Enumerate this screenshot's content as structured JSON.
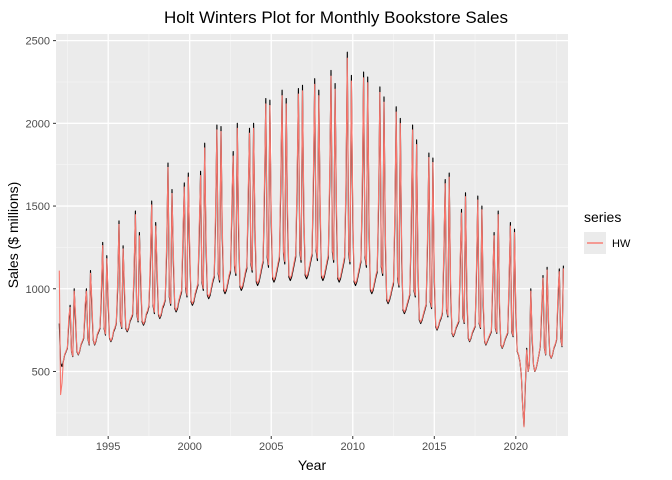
{
  "chart_data": {
    "type": "line",
    "title": "Holt Winters Plot for Monthly Bookstore Sales",
    "xlabel": "Year",
    "ylabel": "Sales ($ millions)",
    "xlim": [
      1991.8,
      2023.2
    ],
    "ylim": [
      110,
      2540
    ],
    "x_ticks": [
      1995,
      2000,
      2005,
      2010,
      2015,
      2020
    ],
    "y_ticks": [
      500,
      1000,
      1500,
      2000,
      2500
    ],
    "grid": true,
    "legend": {
      "title": "series",
      "placement": "right",
      "entries": [
        "HW"
      ]
    },
    "x_start": 1992.0,
    "x_step": 0.0833333,
    "annual_observed": [
      [
        790,
        550,
        530,
        560,
        600,
        620,
        640,
        790,
        900,
        620,
        590,
        1000
      ],
      [
        800,
        620,
        600,
        620,
        660,
        680,
        700,
        860,
        1000,
        700,
        660,
        1110
      ],
      [
        880,
        690,
        660,
        680,
        720,
        740,
        760,
        960,
        1280,
        760,
        720,
        1200
      ],
      [
        900,
        700,
        680,
        700,
        740,
        760,
        790,
        1000,
        1410,
        800,
        760,
        1260
      ],
      [
        960,
        760,
        740,
        760,
        800,
        820,
        840,
        1060,
        1470,
        850,
        800,
        1340
      ],
      [
        1020,
        800,
        780,
        800,
        840,
        860,
        890,
        1120,
        1530,
        900,
        850,
        1400
      ],
      [
        1080,
        840,
        820,
        840,
        880,
        900,
        930,
        1200,
        1760,
        950,
        900,
        1600
      ],
      [
        1150,
        880,
        860,
        880,
        920,
        950,
        980,
        1260,
        1640,
        1000,
        950,
        1700
      ],
      [
        1200,
        920,
        900,
        920,
        960,
        990,
        1020,
        1300,
        1710,
        1040,
        990,
        1880
      ],
      [
        1260,
        960,
        940,
        960,
        1000,
        1040,
        1070,
        1380,
        1990,
        1090,
        1040,
        1980
      ],
      [
        1300,
        990,
        970,
        990,
        1030,
        1070,
        1100,
        1440,
        1830,
        1130,
        1080,
        2000
      ],
      [
        1330,
        1010,
        990,
        1010,
        1050,
        1090,
        1120,
        1480,
        1970,
        1150,
        1100,
        2000
      ],
      [
        1370,
        1040,
        1020,
        1040,
        1080,
        1120,
        1160,
        1540,
        2150,
        1190,
        1130,
        2140
      ],
      [
        1400,
        1060,
        1040,
        1060,
        1100,
        1140,
        1180,
        1580,
        2200,
        1210,
        1150,
        2150
      ],
      [
        1420,
        1070,
        1050,
        1070,
        1110,
        1150,
        1190,
        1600,
        2210,
        1220,
        1160,
        2230
      ],
      [
        1440,
        1080,
        1060,
        1080,
        1120,
        1160,
        1200,
        1620,
        2270,
        1230,
        1170,
        2200
      ],
      [
        1440,
        1070,
        1050,
        1070,
        1110,
        1150,
        1190,
        1620,
        2320,
        1220,
        1160,
        2240
      ],
      [
        1420,
        1060,
        1040,
        1060,
        1100,
        1140,
        1180,
        1600,
        2430,
        1210,
        1150,
        2290
      ],
      [
        1400,
        1040,
        1020,
        1040,
        1080,
        1120,
        1160,
        1560,
        2310,
        1190,
        1130,
        2280
      ],
      [
        1340,
        990,
        970,
        990,
        1030,
        1070,
        1100,
        1500,
        2220,
        1130,
        1080,
        2160
      ],
      [
        1260,
        930,
        910,
        930,
        960,
        1000,
        1030,
        1420,
        2100,
        1060,
        1010,
        2030
      ],
      [
        1180,
        870,
        850,
        870,
        900,
        930,
        960,
        1330,
        1990,
        990,
        950,
        1900
      ],
      [
        1100,
        810,
        790,
        810,
        840,
        870,
        900,
        1250,
        1820,
        920,
        880,
        1790
      ],
      [
        1040,
        770,
        750,
        770,
        800,
        820,
        850,
        1170,
        1660,
        870,
        830,
        1700
      ],
      [
        980,
        730,
        710,
        730,
        760,
        780,
        800,
        1100,
        1480,
        830,
        790,
        1580
      ],
      [
        940,
        700,
        680,
        700,
        730,
        750,
        770,
        1060,
        1560,
        790,
        760,
        1500
      ],
      [
        900,
        680,
        660,
        680,
        700,
        720,
        740,
        1020,
        1340,
        760,
        730,
        1470
      ],
      [
        880,
        660,
        640,
        660,
        690,
        710,
        730,
        1000,
        1400,
        740,
        710,
        1360
      ],
      [
        850,
        620,
        600,
        560,
        480,
        300,
        170,
        400,
        640,
        500,
        540,
        1000
      ],
      [
        700,
        540,
        500,
        520,
        560,
        600,
        650,
        850,
        1080,
        640,
        600,
        1130
      ],
      [
        800,
        600,
        580,
        600,
        640,
        660,
        690,
        920,
        1120,
        700,
        650,
        1140
      ]
    ],
    "hw_initial": [
      1110,
      360,
      430
    ]
  }
}
